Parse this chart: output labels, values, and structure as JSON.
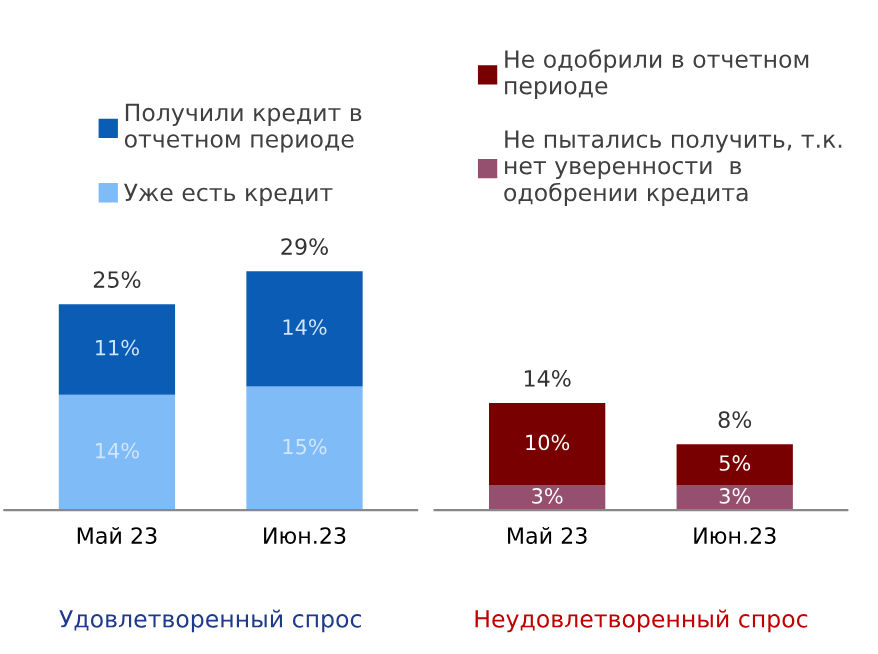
{
  "chart_data": [
    {
      "type": "bar",
      "stacked": true,
      "categories": [
        "Май 23",
        "Июн.23"
      ],
      "xlabel": "Удовлетворенный спрос",
      "legend": "top",
      "series": [
        {
          "name": "Уже есть кредит",
          "color": "#7fbcf7",
          "values": [
            14,
            15
          ],
          "value_labels": [
            "14%",
            "15%"
          ]
        },
        {
          "name": "Получили кредит в\nотчетном периоде",
          "color": "#0b5cb5",
          "values": [
            11,
            14
          ],
          "value_labels": [
            "11%",
            "14%"
          ]
        }
      ],
      "totals": [
        "25%",
        "29%"
      ]
    },
    {
      "type": "bar",
      "stacked": true,
      "categories": [
        "Май 23",
        "Июн.23"
      ],
      "xlabel": "Неудовлетворенный спрос",
      "legend": "top",
      "series": [
        {
          "name": "Не пытались получить, т.к.\nнет уверенности  в\nодобрении кредита",
          "color": "#96506f",
          "values": [
            3,
            3
          ],
          "value_labels": [
            "3%",
            "3%"
          ]
        },
        {
          "name": "Не одобрили в отчетном\nпериоде",
          "color": "#780000",
          "values": [
            10,
            5
          ],
          "value_labels": [
            "10%",
            "5%"
          ]
        }
      ],
      "totals": [
        "14%",
        "8%"
      ]
    }
  ]
}
